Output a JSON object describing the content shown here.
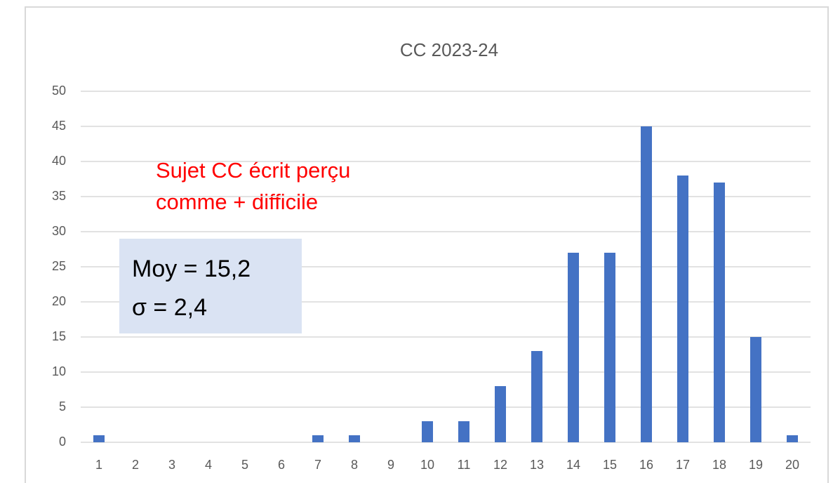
{
  "chart_data": {
    "type": "bar",
    "title": "CC 2023-24",
    "categories": [
      "1",
      "2",
      "3",
      "4",
      "5",
      "6",
      "7",
      "8",
      "9",
      "10",
      "11",
      "12",
      "13",
      "14",
      "15",
      "16",
      "17",
      "18",
      "19",
      "20"
    ],
    "values": [
      1,
      0,
      0,
      0,
      0,
      0,
      1,
      1,
      0,
      3,
      3,
      8,
      13,
      27,
      27,
      45,
      38,
      37,
      15,
      1
    ],
    "color": "#4472c4",
    "ylim": [
      0,
      50
    ],
    "yticks": [
      0,
      5,
      10,
      15,
      20,
      25,
      30,
      35,
      40,
      45,
      50
    ],
    "grid": true,
    "annotations": [
      "Sujet CC écrit perçu",
      "comme + difficile"
    ],
    "stats_box": [
      "Moy = 15,2",
      "σ = 2,4"
    ]
  }
}
